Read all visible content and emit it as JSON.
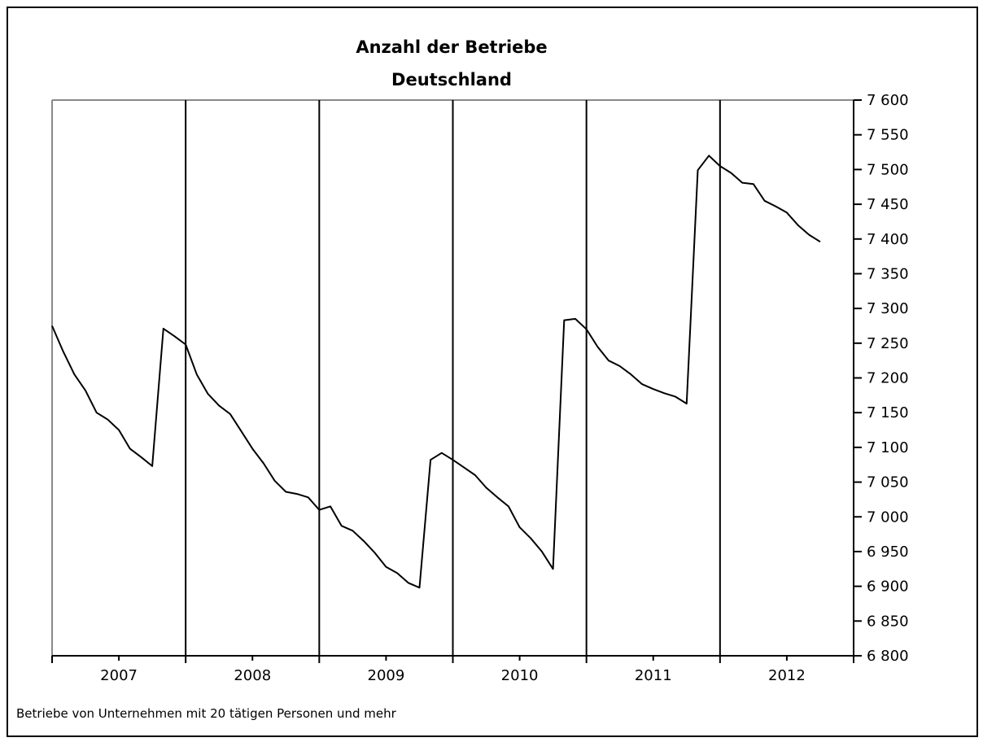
{
  "chart_data": {
    "type": "line",
    "title": "Anzahl der Betriebe",
    "subtitle": "Deutschland",
    "footnote": "Betriebe von Unternehmen mit 20 tätigen Personen und mehr",
    "x_categories": [
      "2007",
      "2008",
      "2009",
      "2010",
      "2011",
      "2012"
    ],
    "y_ticks": [
      "6 800",
      "6 850",
      "6 900",
      "6 950",
      "7 000",
      "7 050",
      "7 100",
      "7 150",
      "7 200",
      "7 250",
      "7 300",
      "7 350",
      "7 400",
      "7 450",
      "7 500",
      "7 550",
      "7 600"
    ],
    "ylim": [
      6800,
      7600
    ],
    "y_axis_position": "right",
    "grid": "vertical year separators",
    "colors": {
      "line": "#000000",
      "axis": "#000000",
      "frame_left": "#888888"
    },
    "series": [
      {
        "x": [
          "2007-01",
          "2007-02",
          "2007-03",
          "2007-04",
          "2007-05",
          "2007-06",
          "2007-07",
          "2007-08",
          "2007-09",
          "2007-10",
          "2007-11",
          "2007-12",
          "2008-01",
          "2008-02",
          "2008-03",
          "2008-04",
          "2008-05",
          "2008-06",
          "2008-07",
          "2008-08",
          "2008-09",
          "2008-10",
          "2008-11",
          "2008-12",
          "2009-01",
          "2009-02",
          "2009-03",
          "2009-04",
          "2009-05",
          "2009-06",
          "2009-07",
          "2009-08",
          "2009-09",
          "2009-10",
          "2009-11",
          "2009-12",
          "2010-01",
          "2010-02",
          "2010-03",
          "2010-04",
          "2010-05",
          "2010-06",
          "2010-07",
          "2010-08",
          "2010-09",
          "2010-10",
          "2010-11",
          "2010-12",
          "2011-01",
          "2011-02",
          "2011-03",
          "2011-04",
          "2011-05",
          "2011-06",
          "2011-07",
          "2011-08",
          "2011-09",
          "2011-10",
          "2011-11",
          "2011-12",
          "2012-01",
          "2012-02",
          "2012-03",
          "2012-04",
          "2012-05",
          "2012-06",
          "2012-07",
          "2012-08",
          "2012-09",
          "2012-10"
        ],
        "values": [
          7275,
          7238,
          7205,
          7182,
          7150,
          7140,
          7125,
          7098,
          7086,
          7073,
          7271,
          7260,
          7248,
          7205,
          7177,
          7160,
          7148,
          7123,
          7098,
          7077,
          7052,
          7036,
          7033,
          7028,
          7010,
          7015,
          6987,
          6980,
          6965,
          6948,
          6928,
          6919,
          6905,
          6898,
          7082,
          7092,
          7082,
          7071,
          7060,
          7042,
          7028,
          7015,
          6985,
          6969,
          6950,
          6925,
          7283,
          7285,
          7270,
          7245,
          7225,
          7217,
          7205,
          7191,
          7184,
          7178,
          7173,
          7163,
          7499,
          7520,
          7505,
          7495,
          7481,
          7479,
          7455,
          7447,
          7438,
          7420,
          7406,
          7396
        ]
      }
    ]
  }
}
